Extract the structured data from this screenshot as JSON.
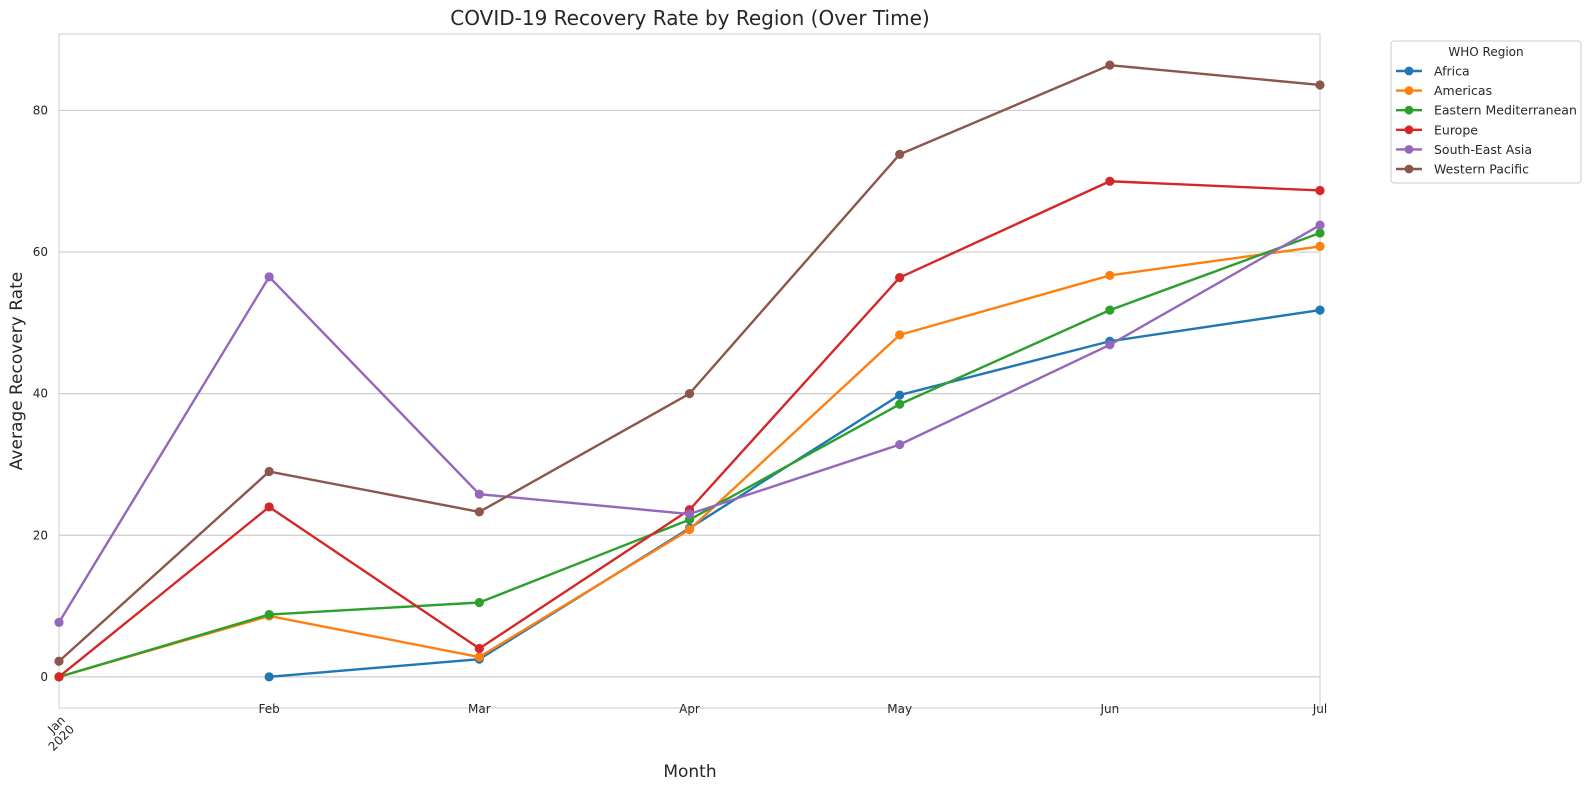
{
  "chart_data": {
    "type": "line",
    "title": "COVID-19 Recovery Rate by Region (Over Time)",
    "xlabel": "Month",
    "ylabel": "Average Recovery Rate",
    "x": [
      "2020-01",
      "2020-02",
      "2020-03",
      "2020-04",
      "2020-05",
      "2020-06",
      "2020-07"
    ],
    "x_tick_labels": [
      {
        "month": "Jan",
        "year": "2020"
      },
      {
        "month": "Feb",
        "year": ""
      },
      {
        "month": "Mar",
        "year": ""
      },
      {
        "month": "Apr",
        "year": ""
      },
      {
        "month": "May",
        "year": ""
      },
      {
        "month": "Jun",
        "year": ""
      },
      {
        "month": "Jul",
        "year": ""
      }
    ],
    "y_ticks": [
      0,
      20,
      40,
      60,
      80
    ],
    "ylim": [
      -4.4,
      90.8
    ],
    "grid": "horizontal",
    "legend": {
      "title": "WHO Region",
      "placement": "outside-top-right"
    },
    "series": [
      {
        "name": "Africa",
        "color": "#1f77b4",
        "values": [
          null,
          0.0,
          2.5,
          21.0,
          39.8,
          47.4,
          51.8
        ]
      },
      {
        "name": "Americas",
        "color": "#ff7f0e",
        "values": [
          0.0,
          8.6,
          2.8,
          20.8,
          48.3,
          56.7,
          60.8
        ]
      },
      {
        "name": "Eastern Mediterranean",
        "color": "#2ca02c",
        "values": [
          0.0,
          8.8,
          10.5,
          22.2,
          38.5,
          51.8,
          62.7
        ]
      },
      {
        "name": "Europe",
        "color": "#d62728",
        "values": [
          0.0,
          24.0,
          4.0,
          23.6,
          56.4,
          70.0,
          68.7
        ]
      },
      {
        "name": "South-East Asia",
        "color": "#9467bd",
        "values": [
          7.7,
          56.5,
          25.8,
          23.0,
          32.8,
          46.9,
          63.8
        ]
      },
      {
        "name": "Western Pacific",
        "color": "#8c564b",
        "values": [
          2.2,
          29.0,
          23.3,
          40.0,
          73.8,
          86.4,
          83.6
        ]
      }
    ]
  }
}
